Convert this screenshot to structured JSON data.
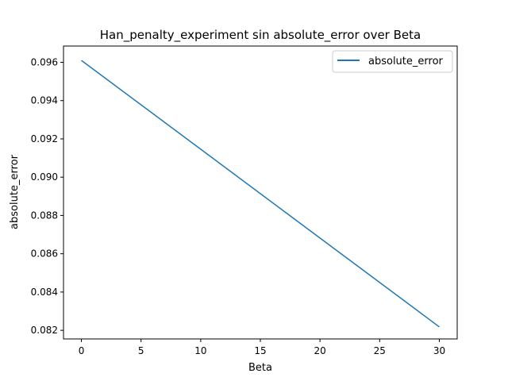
{
  "chart_data": {
    "type": "line",
    "title": "Han_penalty_experiment sin absolute_error over Beta",
    "xlabel": "Beta",
    "ylabel": "absolute_error",
    "xlim": [
      -1.5,
      31.5
    ],
    "ylim": [
      0.08155,
      0.09685
    ],
    "x_ticks": [
      0,
      5,
      10,
      15,
      20,
      25,
      30
    ],
    "x_tick_labels": [
      "0",
      "5",
      "10",
      "15",
      "20",
      "25",
      "30"
    ],
    "y_ticks": [
      0.082,
      0.084,
      0.086,
      0.088,
      0.09,
      0.092,
      0.094,
      0.096
    ],
    "y_tick_labels": [
      "0.082",
      "0.084",
      "0.086",
      "0.088",
      "0.090",
      "0.092",
      "0.094",
      "0.096"
    ],
    "grid": false,
    "legend_position": "top-right",
    "series": [
      {
        "name": "absolute_error",
        "color": "#1f77b4",
        "x": [
          0,
          30
        ],
        "y": [
          0.0961,
          0.08218
        ]
      }
    ]
  }
}
